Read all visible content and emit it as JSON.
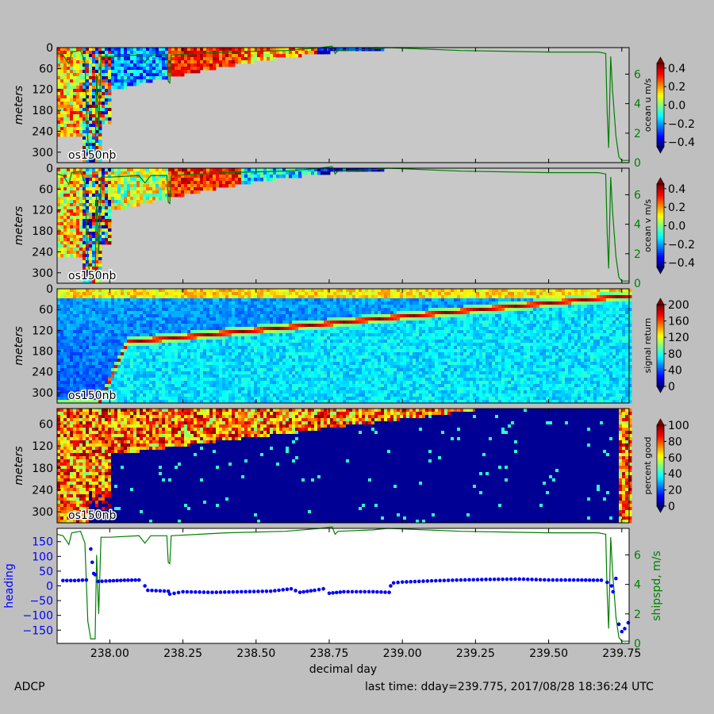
{
  "figure": {
    "footer_left": "ADCP",
    "footer_right": "last time: dday=239.775,  2017/08/28 18:36:24 UTC",
    "xlabel": "decimal day",
    "x_ticks": [
      "238.00",
      "238.25",
      "238.50",
      "238.75",
      "239.00",
      "239.25",
      "239.50",
      "239.75"
    ],
    "panel_label": "os150nb"
  },
  "colors": {
    "figure_bg": "#bfbfbf",
    "nodata": "#c8c8c8",
    "ship_speed_line": "#007f00",
    "heading_points": "#0000ff"
  },
  "chart_data": [
    {
      "type": "heatmap",
      "name": "ocean-u",
      "ylabel": "meters",
      "y_ticks": [
        0,
        60,
        120,
        180,
        240,
        300
      ],
      "ylim": [
        330,
        0
      ],
      "xlim": [
        237.82,
        239.775
      ],
      "colorbar": {
        "label": "ocean u m/s",
        "ticks": [
          "0.4",
          "0.2",
          "0.0",
          "−0.2",
          "−0.4"
        ],
        "range": [
          -0.45,
          0.45
        ],
        "colormap": "jet"
      },
      "right_axis": {
        "ticks": [
          "0",
          "2",
          "4",
          "6"
        ],
        "range": [
          0,
          7.8
        ]
      },
      "panel_label": "os150nb"
    },
    {
      "type": "heatmap",
      "name": "ocean-v",
      "ylabel": "meters",
      "y_ticks": [
        0,
        60,
        120,
        180,
        240,
        300
      ],
      "ylim": [
        330,
        0
      ],
      "xlim": [
        237.82,
        239.775
      ],
      "colorbar": {
        "label": "ocean v m/s",
        "ticks": [
          "0.4",
          "0.2",
          "0.0",
          "−0.2",
          "−0.4"
        ],
        "range": [
          -0.45,
          0.45
        ],
        "colormap": "jet"
      },
      "right_axis": {
        "ticks": [
          "0",
          "2",
          "4",
          "6"
        ],
        "range": [
          0,
          7.8
        ]
      },
      "panel_label": "os150nb"
    },
    {
      "type": "heatmap",
      "name": "signal-return",
      "ylabel": "meters",
      "y_ticks": [
        0,
        60,
        120,
        180,
        240,
        300
      ],
      "ylim": [
        330,
        0
      ],
      "xlim": [
        237.82,
        239.775
      ],
      "colorbar": {
        "label": "signal return",
        "ticks": [
          "200",
          "160",
          "120",
          "80",
          "40",
          "0"
        ],
        "range": [
          0,
          200
        ],
        "colormap": "jet"
      },
      "panel_label": "os150nb"
    },
    {
      "type": "heatmap",
      "name": "percent-good",
      "ylabel": "meters",
      "y_ticks": [
        60,
        120,
        180,
        240,
        300
      ],
      "ylim": [
        330,
        18
      ],
      "xlim": [
        237.82,
        239.775
      ],
      "colorbar": {
        "label": "percent good",
        "ticks": [
          "100",
          "80",
          "60",
          "40",
          "20",
          "0"
        ],
        "range": [
          0,
          100
        ],
        "colormap": "jet"
      },
      "panel_label": "os150nb"
    },
    {
      "type": "scatter",
      "name": "heading-shipspd",
      "ylabel": "heading",
      "y_ticks": [
        "150",
        "100",
        "50",
        "0",
        "−50",
        "−100",
        "−150"
      ],
      "ylim": [
        -195,
        195
      ],
      "xlim": [
        237.82,
        239.775
      ],
      "right_axis": {
        "label": "shipspd, m/s",
        "ticks": [
          "0",
          "2",
          "4",
          "6"
        ],
        "range": [
          0,
          7.8
        ]
      },
      "heading_points": [
        [
          237.84,
          18
        ],
        [
          237.88,
          18
        ],
        [
          237.92,
          20
        ],
        [
          237.935,
          125
        ],
        [
          237.94,
          80
        ],
        [
          237.945,
          42
        ],
        [
          237.95,
          38
        ],
        [
          237.96,
          15
        ],
        [
          238.0,
          17
        ],
        [
          238.05,
          19
        ],
        [
          238.1,
          20
        ],
        [
          238.12,
          0
        ],
        [
          238.13,
          -15
        ],
        [
          238.2,
          -18
        ],
        [
          238.205,
          -28
        ],
        [
          238.25,
          -20
        ],
        [
          238.35,
          -22
        ],
        [
          238.45,
          -20
        ],
        [
          238.55,
          -18
        ],
        [
          238.62,
          -10
        ],
        [
          238.65,
          -22
        ],
        [
          238.7,
          -15
        ],
        [
          238.73,
          -10
        ],
        [
          238.75,
          -25
        ],
        [
          238.8,
          -20
        ],
        [
          238.9,
          -20
        ],
        [
          238.955,
          -22
        ],
        [
          238.96,
          0
        ],
        [
          238.97,
          10
        ],
        [
          239.0,
          13
        ],
        [
          239.1,
          17
        ],
        [
          239.2,
          20
        ],
        [
          239.3,
          22
        ],
        [
          239.4,
          23
        ],
        [
          239.5,
          20
        ],
        [
          239.6,
          20
        ],
        [
          239.68,
          19
        ],
        [
          239.7,
          12
        ],
        [
          239.715,
          0
        ],
        [
          239.72,
          -20
        ],
        [
          239.73,
          25
        ],
        [
          239.74,
          -130
        ],
        [
          239.75,
          -155
        ],
        [
          239.76,
          -145
        ],
        [
          239.772,
          -125
        ]
      ],
      "ship_speed": [
        [
          237.82,
          7.4
        ],
        [
          237.84,
          7.3
        ],
        [
          237.86,
          6.7
        ],
        [
          237.87,
          7.5
        ],
        [
          237.9,
          7.6
        ],
        [
          237.915,
          6.8
        ],
        [
          237.925,
          1.5
        ],
        [
          237.935,
          0.3
        ],
        [
          237.95,
          0.3
        ],
        [
          237.955,
          6.0
        ],
        [
          237.962,
          2.0
        ],
        [
          237.97,
          7.2
        ],
        [
          238.0,
          7.2
        ],
        [
          238.1,
          7.3
        ],
        [
          238.12,
          6.8
        ],
        [
          238.14,
          7.3
        ],
        [
          238.195,
          7.3
        ],
        [
          238.2,
          5.5
        ],
        [
          238.205,
          5.4
        ],
        [
          238.21,
          7.3
        ],
        [
          238.4,
          7.5
        ],
        [
          238.6,
          7.6
        ],
        [
          238.72,
          7.8
        ],
        [
          238.76,
          7.9
        ],
        [
          238.77,
          7.4
        ],
        [
          238.78,
          7.6
        ],
        [
          238.9,
          7.7
        ],
        [
          238.95,
          7.8
        ],
        [
          239.2,
          7.6
        ],
        [
          239.5,
          7.5
        ],
        [
          239.67,
          7.5
        ],
        [
          239.695,
          7.4
        ],
        [
          239.7,
          3.5
        ],
        [
          239.705,
          1.0
        ],
        [
          239.712,
          7.2
        ],
        [
          239.718,
          5.0
        ],
        [
          239.73,
          1.8
        ],
        [
          239.74,
          0.4
        ],
        [
          239.75,
          0.15
        ],
        [
          239.775,
          0.15
        ]
      ]
    }
  ]
}
